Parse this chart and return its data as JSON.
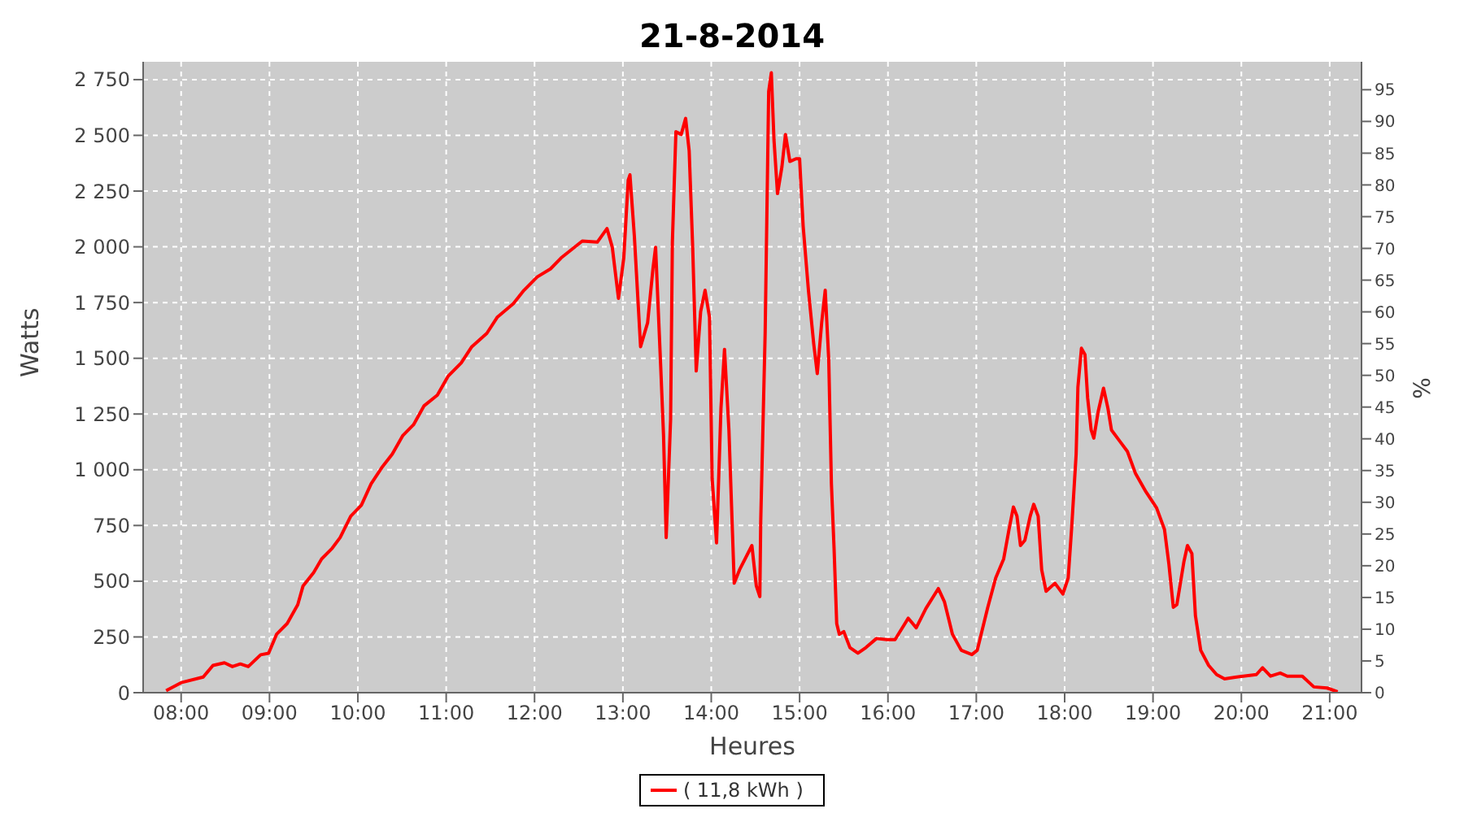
{
  "chart_data": {
    "type": "line",
    "title": "21-8-2014",
    "xlabel": "Heures",
    "ylabel": "Watts",
    "y2label": "%",
    "x": [
      7.83,
      8.0,
      8.25,
      8.36,
      8.49,
      8.58,
      8.67,
      8.76,
      8.9,
      8.99,
      9.08,
      9.2,
      9.32,
      9.38,
      9.5,
      9.59,
      9.71,
      9.8,
      9.92,
      10.04,
      10.15,
      10.27,
      10.39,
      10.51,
      10.63,
      10.75,
      10.9,
      11.02,
      11.17,
      11.29,
      11.46,
      11.58,
      11.76,
      11.88,
      12.03,
      12.18,
      12.3,
      12.54,
      12.71,
      12.82,
      12.88,
      12.95,
      13.01,
      13.06,
      13.08,
      13.13,
      13.2,
      13.28,
      13.34,
      13.37,
      13.43,
      13.46,
      13.49,
      13.54,
      13.56,
      13.6,
      13.66,
      13.71,
      13.75,
      13.79,
      13.83,
      13.88,
      13.93,
      13.98,
      14.01,
      14.06,
      14.11,
      14.15,
      14.2,
      14.26,
      14.32,
      14.46,
      14.51,
      14.55,
      14.56,
      14.61,
      14.65,
      14.68,
      14.71,
      14.75,
      14.8,
      14.84,
      14.89,
      14.96,
      15.0,
      15.04,
      15.1,
      15.16,
      15.2,
      15.25,
      15.29,
      15.33,
      15.36,
      15.39,
      15.42,
      15.45,
      15.5,
      15.57,
      15.66,
      15.75,
      15.87,
      15.99,
      16.08,
      16.23,
      16.32,
      16.43,
      16.57,
      16.64,
      16.73,
      16.83,
      16.95,
      17.01,
      17.13,
      17.22,
      17.31,
      17.37,
      17.42,
      17.46,
      17.5,
      17.55,
      17.61,
      17.65,
      17.7,
      17.74,
      17.79,
      17.89,
      17.98,
      18.04,
      18.08,
      18.13,
      18.15,
      18.19,
      18.23,
      18.26,
      18.3,
      18.33,
      18.38,
      18.44,
      18.49,
      18.53,
      18.62,
      18.71,
      18.8,
      18.92,
      19.04,
      19.13,
      19.18,
      19.23,
      19.27,
      19.35,
      19.39,
      19.44,
      19.48,
      19.54,
      19.63,
      19.72,
      19.81,
      19.93,
      20.02,
      20.17,
      20.24,
      20.33,
      20.44,
      20.52,
      20.69,
      20.82,
      20.97,
      21.09
    ],
    "series": [
      {
        "name": "( 11,8 kWh )",
        "color": "#ff0000",
        "values": [
          9,
          45,
          70,
          122,
          134,
          117,
          129,
          117,
          170,
          177,
          262,
          310,
          395,
          479,
          539,
          600,
          648,
          696,
          792,
          841,
          937,
          1009,
          1070,
          1154,
          1202,
          1287,
          1335,
          1419,
          1479,
          1552,
          1612,
          1685,
          1745,
          1805,
          1865,
          1901,
          1950,
          2026,
          2021,
          2082,
          1998,
          1769,
          1950,
          2299,
          2323,
          2046,
          1552,
          1660,
          1901,
          1998,
          1443,
          1154,
          696,
          1226,
          2021,
          2516,
          2504,
          2576,
          2431,
          1998,
          1443,
          1709,
          1805,
          1685,
          961,
          672,
          1275,
          1540,
          1178,
          491,
          551,
          660,
          479,
          431,
          768,
          1612,
          2697,
          2781,
          2480,
          2239,
          2359,
          2504,
          2383,
          2395,
          2395,
          2094,
          1805,
          1564,
          1431,
          1660,
          1805,
          1491,
          937,
          648,
          310,
          262,
          274,
          202,
          177,
          202,
          243,
          238,
          238,
          334,
          291,
          378,
          467,
          407,
          262,
          190,
          171,
          190,
          383,
          515,
          600,
          732,
          833,
          792,
          660,
          684,
          792,
          845,
          792,
          551,
          455,
          491,
          443,
          515,
          744,
          1070,
          1371,
          1545,
          1516,
          1323,
          1178,
          1142,
          1262,
          1366,
          1275,
          1178,
          1130,
          1082,
          985,
          901,
          829,
          732,
          576,
          383,
          395,
          588,
          660,
          624,
          346,
          190,
          122,
          81,
          62,
          69,
          74,
          81,
          112,
          74,
          88,
          74,
          74,
          26,
          21,
          4
        ]
      }
    ],
    "xlim": [
      7.57,
      21.36
    ],
    "xticks": [
      {
        "value": 8,
        "label": "08:00"
      },
      {
        "value": 9,
        "label": "09:00"
      },
      {
        "value": 10,
        "label": "10:00"
      },
      {
        "value": 11,
        "label": "11:00"
      },
      {
        "value": 12,
        "label": "12:00"
      },
      {
        "value": 13,
        "label": "13:00"
      },
      {
        "value": 14,
        "label": "14:00"
      },
      {
        "value": 15,
        "label": "15:00"
      },
      {
        "value": 16,
        "label": "16:00"
      },
      {
        "value": 17,
        "label": "17:00"
      },
      {
        "value": 18,
        "label": "18:00"
      },
      {
        "value": 19,
        "label": "19:00"
      },
      {
        "value": 20,
        "label": "20:00"
      },
      {
        "value": 21,
        "label": "21:00"
      }
    ],
    "ylim": [
      0,
      2830
    ],
    "yticks": [
      0,
      250,
      500,
      750,
      {
        "value": 1000,
        "label": "1 000"
      },
      {
        "value": 1250,
        "label": "1 250"
      },
      {
        "value": 1500,
        "label": "1 500"
      },
      {
        "value": 1750,
        "label": "1 750"
      },
      {
        "value": 2000,
        "label": "2 000"
      },
      {
        "value": 2250,
        "label": "2 250"
      },
      {
        "value": 2500,
        "label": "2 500"
      },
      {
        "value": 2750,
        "label": "2 750"
      }
    ],
    "y2lim": [
      0,
      99.4
    ],
    "y2ticks": [
      0,
      5,
      10,
      15,
      20,
      25,
      30,
      35,
      40,
      45,
      50,
      55,
      60,
      65,
      70,
      75,
      80,
      85,
      90,
      95
    ],
    "grid": true,
    "legend": "bottom",
    "marker": "none",
    "line_style": "solid"
  }
}
